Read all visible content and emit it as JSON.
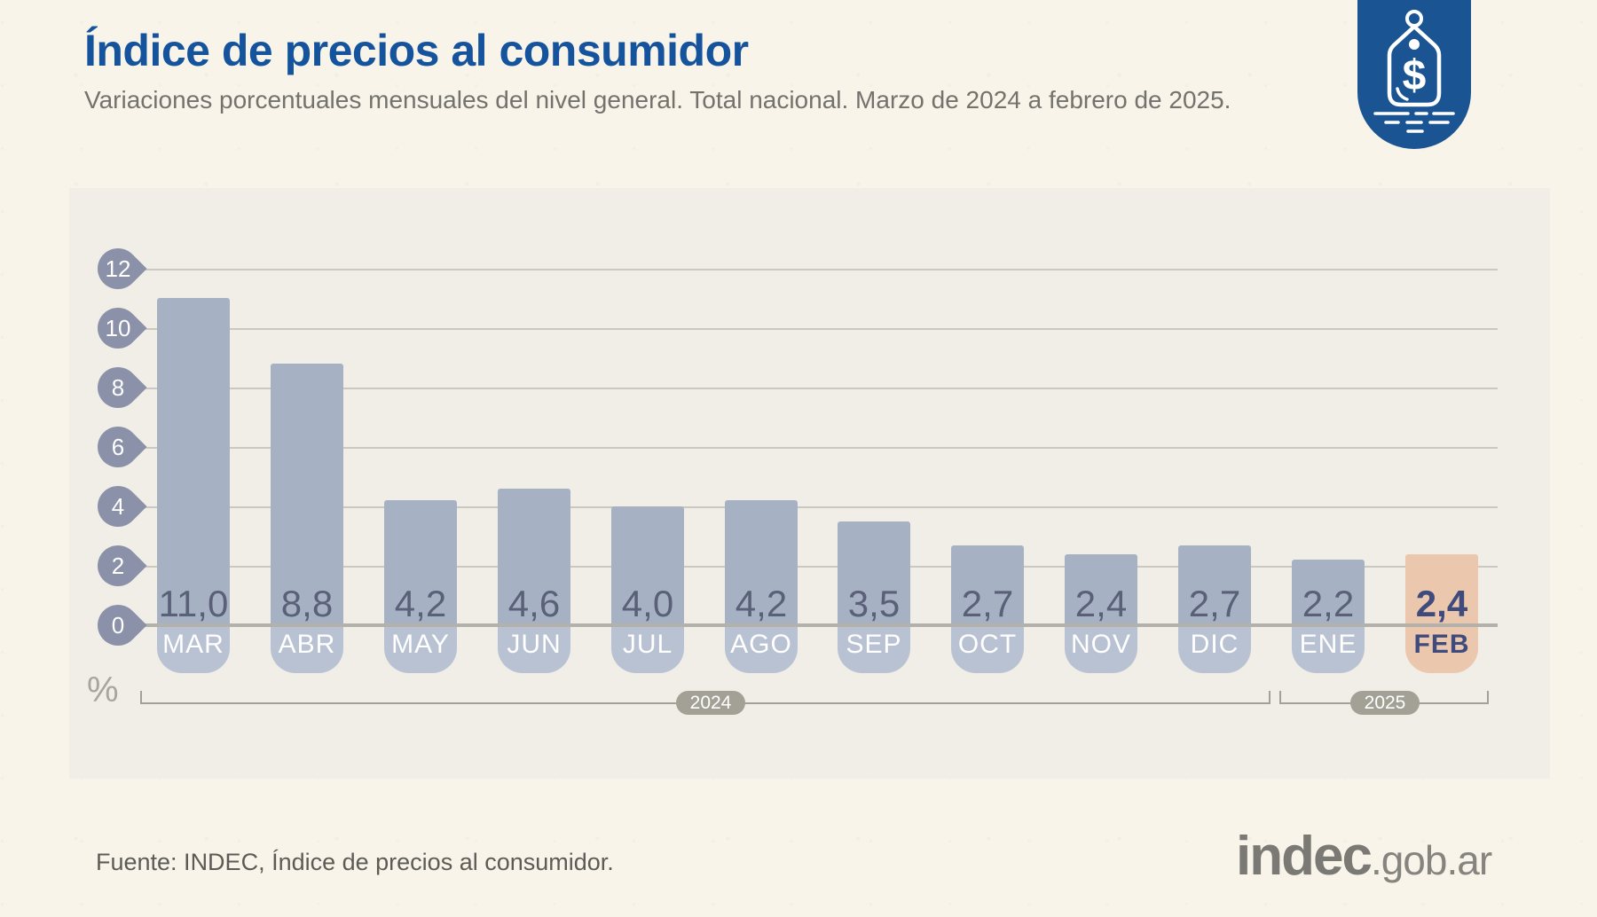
{
  "header": {
    "title": "Índice de precios al consumidor",
    "subtitle": "Variaciones porcentuales mensuales del nivel general. Total nacional. Marzo de 2024 a febrero de 2025."
  },
  "badge": {
    "icon": "price-tag-icon",
    "color": "#1a5492"
  },
  "chart_data": {
    "type": "bar",
    "title": "Índice de precios al consumidor",
    "xlabel": "",
    "ylabel": "%",
    "ylim": [
      0,
      12
    ],
    "yticks": [
      0,
      2,
      4,
      6,
      8,
      10,
      12
    ],
    "grid": true,
    "categories": [
      "MAR",
      "ABR",
      "MAY",
      "JUN",
      "JUL",
      "AGO",
      "SEP",
      "OCT",
      "NOV",
      "DIC",
      "ENE",
      "FEB"
    ],
    "values": [
      11.0,
      8.8,
      4.2,
      4.6,
      4.0,
      4.2,
      3.5,
      2.7,
      2.4,
      2.7,
      2.2,
      2.4
    ],
    "value_labels": [
      "11,0",
      "8,8",
      "4,2",
      "4,6",
      "4,0",
      "4,2",
      "3,5",
      "2,7",
      "2,4",
      "2,7",
      "2,2",
      "2,4"
    ],
    "highlight_index": 11,
    "highlight_category": "FEB",
    "year_groups": [
      {
        "label": "2024",
        "from": "MAR",
        "to": "DIC"
      },
      {
        "label": "2025",
        "from": "ENE",
        "to": "FEB"
      }
    ],
    "colors": {
      "bar": "#a7b1c4",
      "bar_highlight": "#ebc7ae",
      "pill": "#b9c2d3",
      "pill_highlight": "#ebc7ae",
      "value_text": "#596078",
      "value_text_highlight": "#3f4a7d",
      "month_text": "#ffffff",
      "month_text_highlight": "#3f4a7d",
      "pin": "#8a91a8",
      "gridline": "#cac8c1",
      "baseline": "#b3b1ac",
      "bracket": "#a3a096"
    }
  },
  "footer": {
    "source": "Fuente: INDEC, Índice de precios al consumidor.",
    "logo": {
      "text": "indec",
      "suffix": ".gob.ar"
    }
  }
}
